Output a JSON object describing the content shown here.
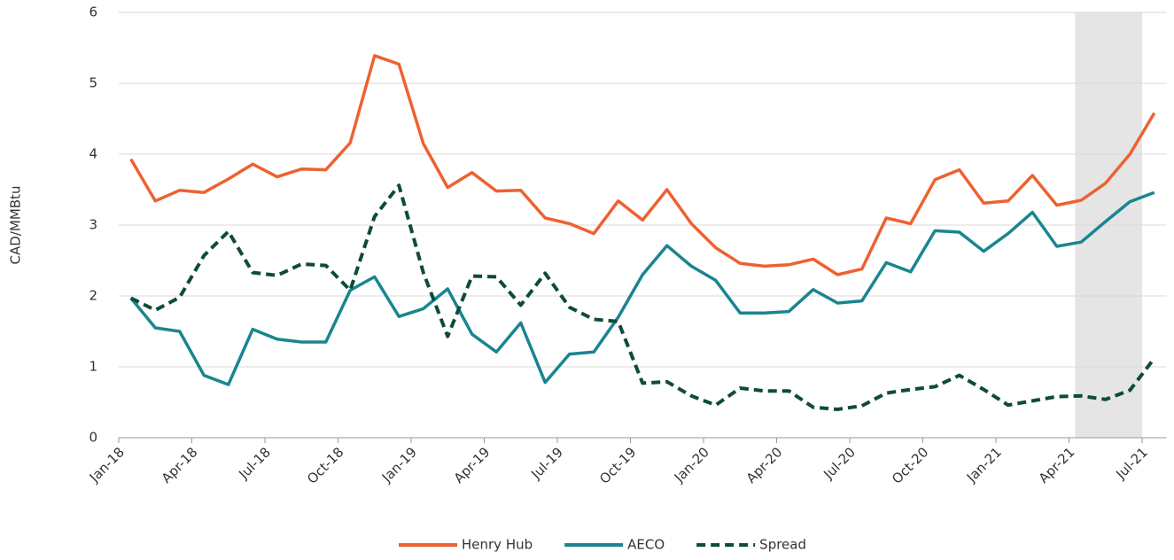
{
  "chart_data": {
    "type": "line",
    "y_label": "CAD/MMBtu",
    "categories": [
      "Jan-18",
      null,
      null,
      "Apr-18",
      null,
      null,
      "Jul-18",
      null,
      null,
      "Oct-18",
      null,
      null,
      "Jan-19",
      null,
      null,
      "Apr-19",
      null,
      null,
      "Jul-19",
      null,
      null,
      "Oct-19",
      null,
      null,
      "Jan-20",
      null,
      null,
      "Apr-20",
      null,
      null,
      "Jul-20",
      null,
      null,
      "Oct-20",
      null,
      null,
      "Jan-21",
      null,
      null,
      "Apr-21",
      null,
      null,
      "Jul-21"
    ],
    "series": [
      {
        "name": "Henry Hub",
        "color": "#ee6131",
        "dashed": false,
        "values": [
          3.93,
          3.34,
          3.49,
          3.46,
          3.65,
          3.86,
          3.68,
          3.79,
          3.78,
          4.16,
          5.39,
          5.27,
          4.15,
          3.53,
          3.74,
          3.48,
          3.49,
          3.1,
          3.02,
          2.88,
          3.34,
          3.07,
          3.5,
          3.02,
          2.68,
          2.46,
          2.42,
          2.44,
          2.52,
          2.3,
          2.38,
          3.1,
          3.02,
          3.64,
          3.78,
          3.31,
          3.34,
          3.7,
          3.28,
          3.35,
          3.59,
          4.0,
          4.58
        ]
      },
      {
        "name": "AECO",
        "color": "#1a8590",
        "dashed": false,
        "values": [
          1.97,
          1.55,
          1.5,
          0.88,
          0.75,
          1.53,
          1.39,
          1.35,
          1.35,
          2.08,
          2.27,
          1.71,
          1.82,
          2.1,
          1.46,
          1.21,
          1.62,
          0.78,
          1.18,
          1.21,
          1.7,
          2.3,
          2.71,
          2.42,
          2.22,
          1.76,
          1.76,
          1.78,
          2.09,
          1.9,
          1.93,
          2.47,
          2.34,
          2.92,
          2.9,
          2.63,
          2.88,
          3.18,
          2.7,
          2.76,
          3.05,
          3.33,
          3.46
        ]
      },
      {
        "name": "Spread",
        "color": "#0e4b3c",
        "dashed": true,
        "values": [
          1.97,
          1.8,
          1.98,
          2.57,
          2.91,
          2.33,
          2.29,
          2.45,
          2.43,
          2.08,
          3.12,
          3.56,
          2.33,
          1.43,
          2.28,
          2.27,
          1.87,
          2.32,
          1.84,
          1.67,
          1.64,
          0.77,
          0.79,
          0.59,
          0.46,
          0.7,
          0.66,
          0.66,
          0.43,
          0.4,
          0.45,
          0.63,
          0.68,
          0.72,
          0.88,
          0.68,
          0.46,
          0.52,
          0.58,
          0.59,
          0.54,
          0.67,
          1.12
        ]
      }
    ],
    "shaded_range": [
      "Apr-21",
      "Jul-21"
    ],
    "ylim": [
      0,
      6
    ],
    "yticks": [
      0,
      1,
      2,
      3,
      4,
      5,
      6
    ],
    "grid": true,
    "legend": "bottom"
  }
}
